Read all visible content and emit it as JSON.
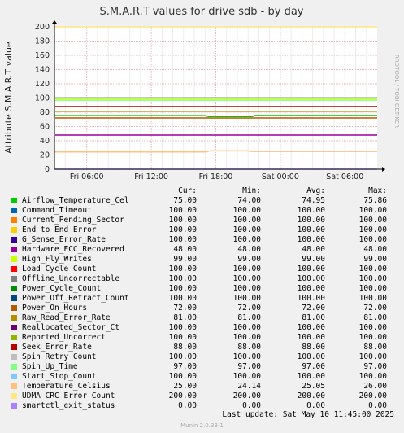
{
  "chart_data": {
    "type": "line",
    "title": "S.M.A.R.T values for drive sdb - by day",
    "ylabel": "Attribute S.M.A.R.T value",
    "ylim": [
      0,
      200
    ],
    "yticks": [
      0,
      20,
      40,
      60,
      80,
      100,
      120,
      140,
      160,
      180,
      200
    ],
    "xlim_hours": [
      0,
      30
    ],
    "xticks": [
      {
        "label": "Fri 06:00",
        "hour": 3
      },
      {
        "label": "Fri 12:00",
        "hour": 9
      },
      {
        "label": "Fri 18:00",
        "hour": 15
      },
      {
        "label": "Sat 00:00",
        "hour": 21
      },
      {
        "label": "Sat 06:00",
        "hour": 27
      }
    ],
    "grid": true,
    "legend_placement": "bottom",
    "columns": [
      "Cur:",
      "Min:",
      "Avg:",
      "Max:"
    ],
    "series": [
      {
        "name": "Airflow_Temperature_Cel",
        "color": "#00cc00",
        "cur": "75.00",
        "min": "74.00",
        "avg": "74.95",
        "max": "75.86",
        "value": 75
      },
      {
        "name": "Command_Timeout",
        "color": "#0066b3",
        "cur": "100.00",
        "min": "100.00",
        "avg": "100.00",
        "max": "100.00",
        "value": 100
      },
      {
        "name": "Current_Pending_Sector",
        "color": "#ff8000",
        "cur": "100.00",
        "min": "100.00",
        "avg": "100.00",
        "max": "100.00",
        "value": 100
      },
      {
        "name": "End_to_End_Error",
        "color": "#ffcc00",
        "cur": "100.00",
        "min": "100.00",
        "avg": "100.00",
        "max": "100.00",
        "value": 100
      },
      {
        "name": "G_Sense_Error_Rate",
        "color": "#330099",
        "cur": "100.00",
        "min": "100.00",
        "avg": "100.00",
        "max": "100.00",
        "value": 100
      },
      {
        "name": "Hardware_ECC_Recovered",
        "color": "#990099",
        "cur": "48.00",
        "min": "48.00",
        "avg": "48.00",
        "max": "48.00",
        "value": 48
      },
      {
        "name": "High_Fly_Writes",
        "color": "#ccff00",
        "cur": "99.00",
        "min": "99.00",
        "avg": "99.00",
        "max": "99.00",
        "value": 99
      },
      {
        "name": "Load_Cycle_Count",
        "color": "#ff0000",
        "cur": "100.00",
        "min": "100.00",
        "avg": "100.00",
        "max": "100.00",
        "value": 100
      },
      {
        "name": "Offline_Uncorrectable",
        "color": "#808080",
        "cur": "100.00",
        "min": "100.00",
        "avg": "100.00",
        "max": "100.00",
        "value": 100
      },
      {
        "name": "Power_Cycle_Count",
        "color": "#008f00",
        "cur": "100.00",
        "min": "100.00",
        "avg": "100.00",
        "max": "100.00",
        "value": 100
      },
      {
        "name": "Power_Off_Retract_Count",
        "color": "#00487d",
        "cur": "100.00",
        "min": "100.00",
        "avg": "100.00",
        "max": "100.00",
        "value": 100
      },
      {
        "name": "Power_On_Hours",
        "color": "#b35a00",
        "cur": "72.00",
        "min": "72.00",
        "avg": "72.00",
        "max": "72.00",
        "value": 72
      },
      {
        "name": "Raw_Read_Error_Rate",
        "color": "#b38f00",
        "cur": "81.00",
        "min": "81.00",
        "avg": "81.00",
        "max": "81.00",
        "value": 81
      },
      {
        "name": "Reallocated_Sector_Ct",
        "color": "#6b006b",
        "cur": "100.00",
        "min": "100.00",
        "avg": "100.00",
        "max": "100.00",
        "value": 100
      },
      {
        "name": "Reported_Uncorrect",
        "color": "#8fb300",
        "cur": "100.00",
        "min": "100.00",
        "avg": "100.00",
        "max": "100.00",
        "value": 100
      },
      {
        "name": "Seek_Error_Rate",
        "color": "#b30000",
        "cur": "88.00",
        "min": "88.00",
        "avg": "88.00",
        "max": "88.00",
        "value": 88
      },
      {
        "name": "Spin_Retry_Count",
        "color": "#bebebe",
        "cur": "100.00",
        "min": "100.00",
        "avg": "100.00",
        "max": "100.00",
        "value": 100
      },
      {
        "name": "Spin_Up_Time",
        "color": "#80ff80",
        "cur": "97.00",
        "min": "97.00",
        "avg": "97.00",
        "max": "97.00",
        "value": 97
      },
      {
        "name": "Start_Stop_Count",
        "color": "#80c9ff",
        "cur": "100.00",
        "min": "100.00",
        "avg": "100.00",
        "max": "100.00",
        "value": 100
      },
      {
        "name": "Temperature_Celsius",
        "color": "#ffc080",
        "cur": "25.00",
        "min": "24.14",
        "avg": "25.05",
        "max": "26.00",
        "value": 25
      },
      {
        "name": "UDMA_CRC_Error_Count",
        "color": "#ffe680",
        "cur": "200.00",
        "min": "200.00",
        "avg": "200.00",
        "max": "200.00",
        "value": 200
      },
      {
        "name": "smartctl_exit_status",
        "color": "#aa80ff",
        "cur": "0.00",
        "min": "0.00",
        "avg": "0.00",
        "max": "0.00",
        "value": 0
      }
    ]
  },
  "side_text": "RRDTOOL / TOBI OETIKER",
  "footer": {
    "last_update": "Last update:  Sat May 10 11:45:00 2025",
    "version": "Munin 2.0.33-1"
  }
}
